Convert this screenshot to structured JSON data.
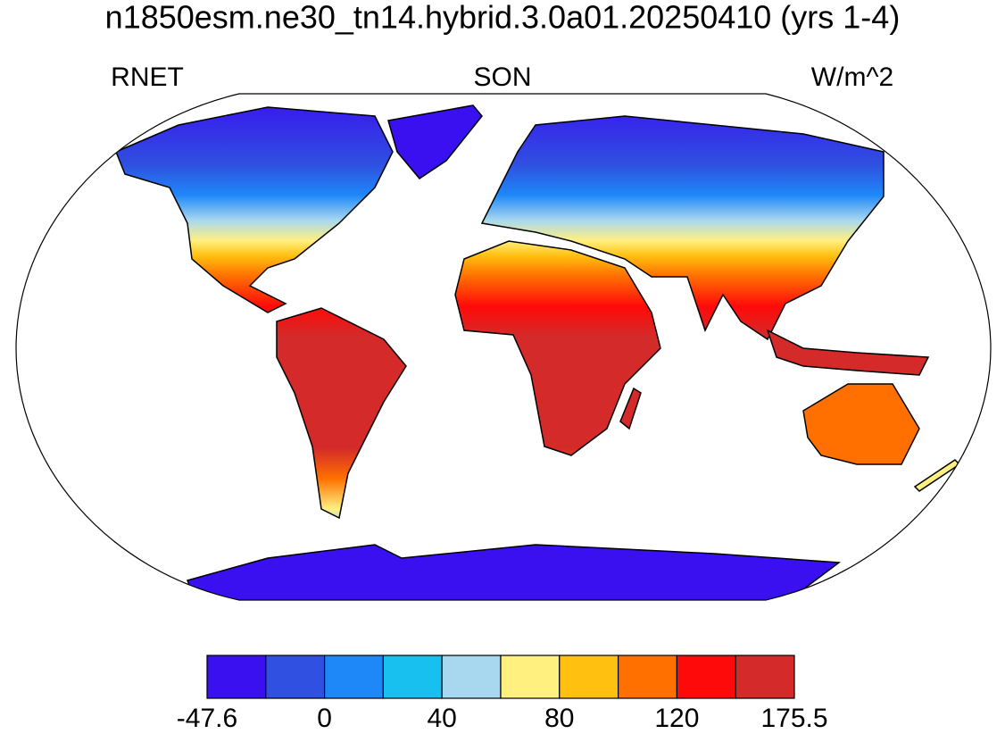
{
  "title": "n1850esm.ne30_tn14.hybrid.3.0a01.20250410 (yrs 1-4)",
  "left_label": "RNET",
  "center_label": "SON",
  "right_label": "W/m^2",
  "colorbar": {
    "colors": [
      "#3a10f0",
      "#2f50e0",
      "#1e88f8",
      "#18c0f0",
      "#a8d8f0",
      "#fff080",
      "#ffc010",
      "#ff7000",
      "#ff0a0a",
      "#d42a2a"
    ],
    "labels": [
      -47.6,
      0,
      40,
      80,
      120,
      175.5
    ]
  }
}
